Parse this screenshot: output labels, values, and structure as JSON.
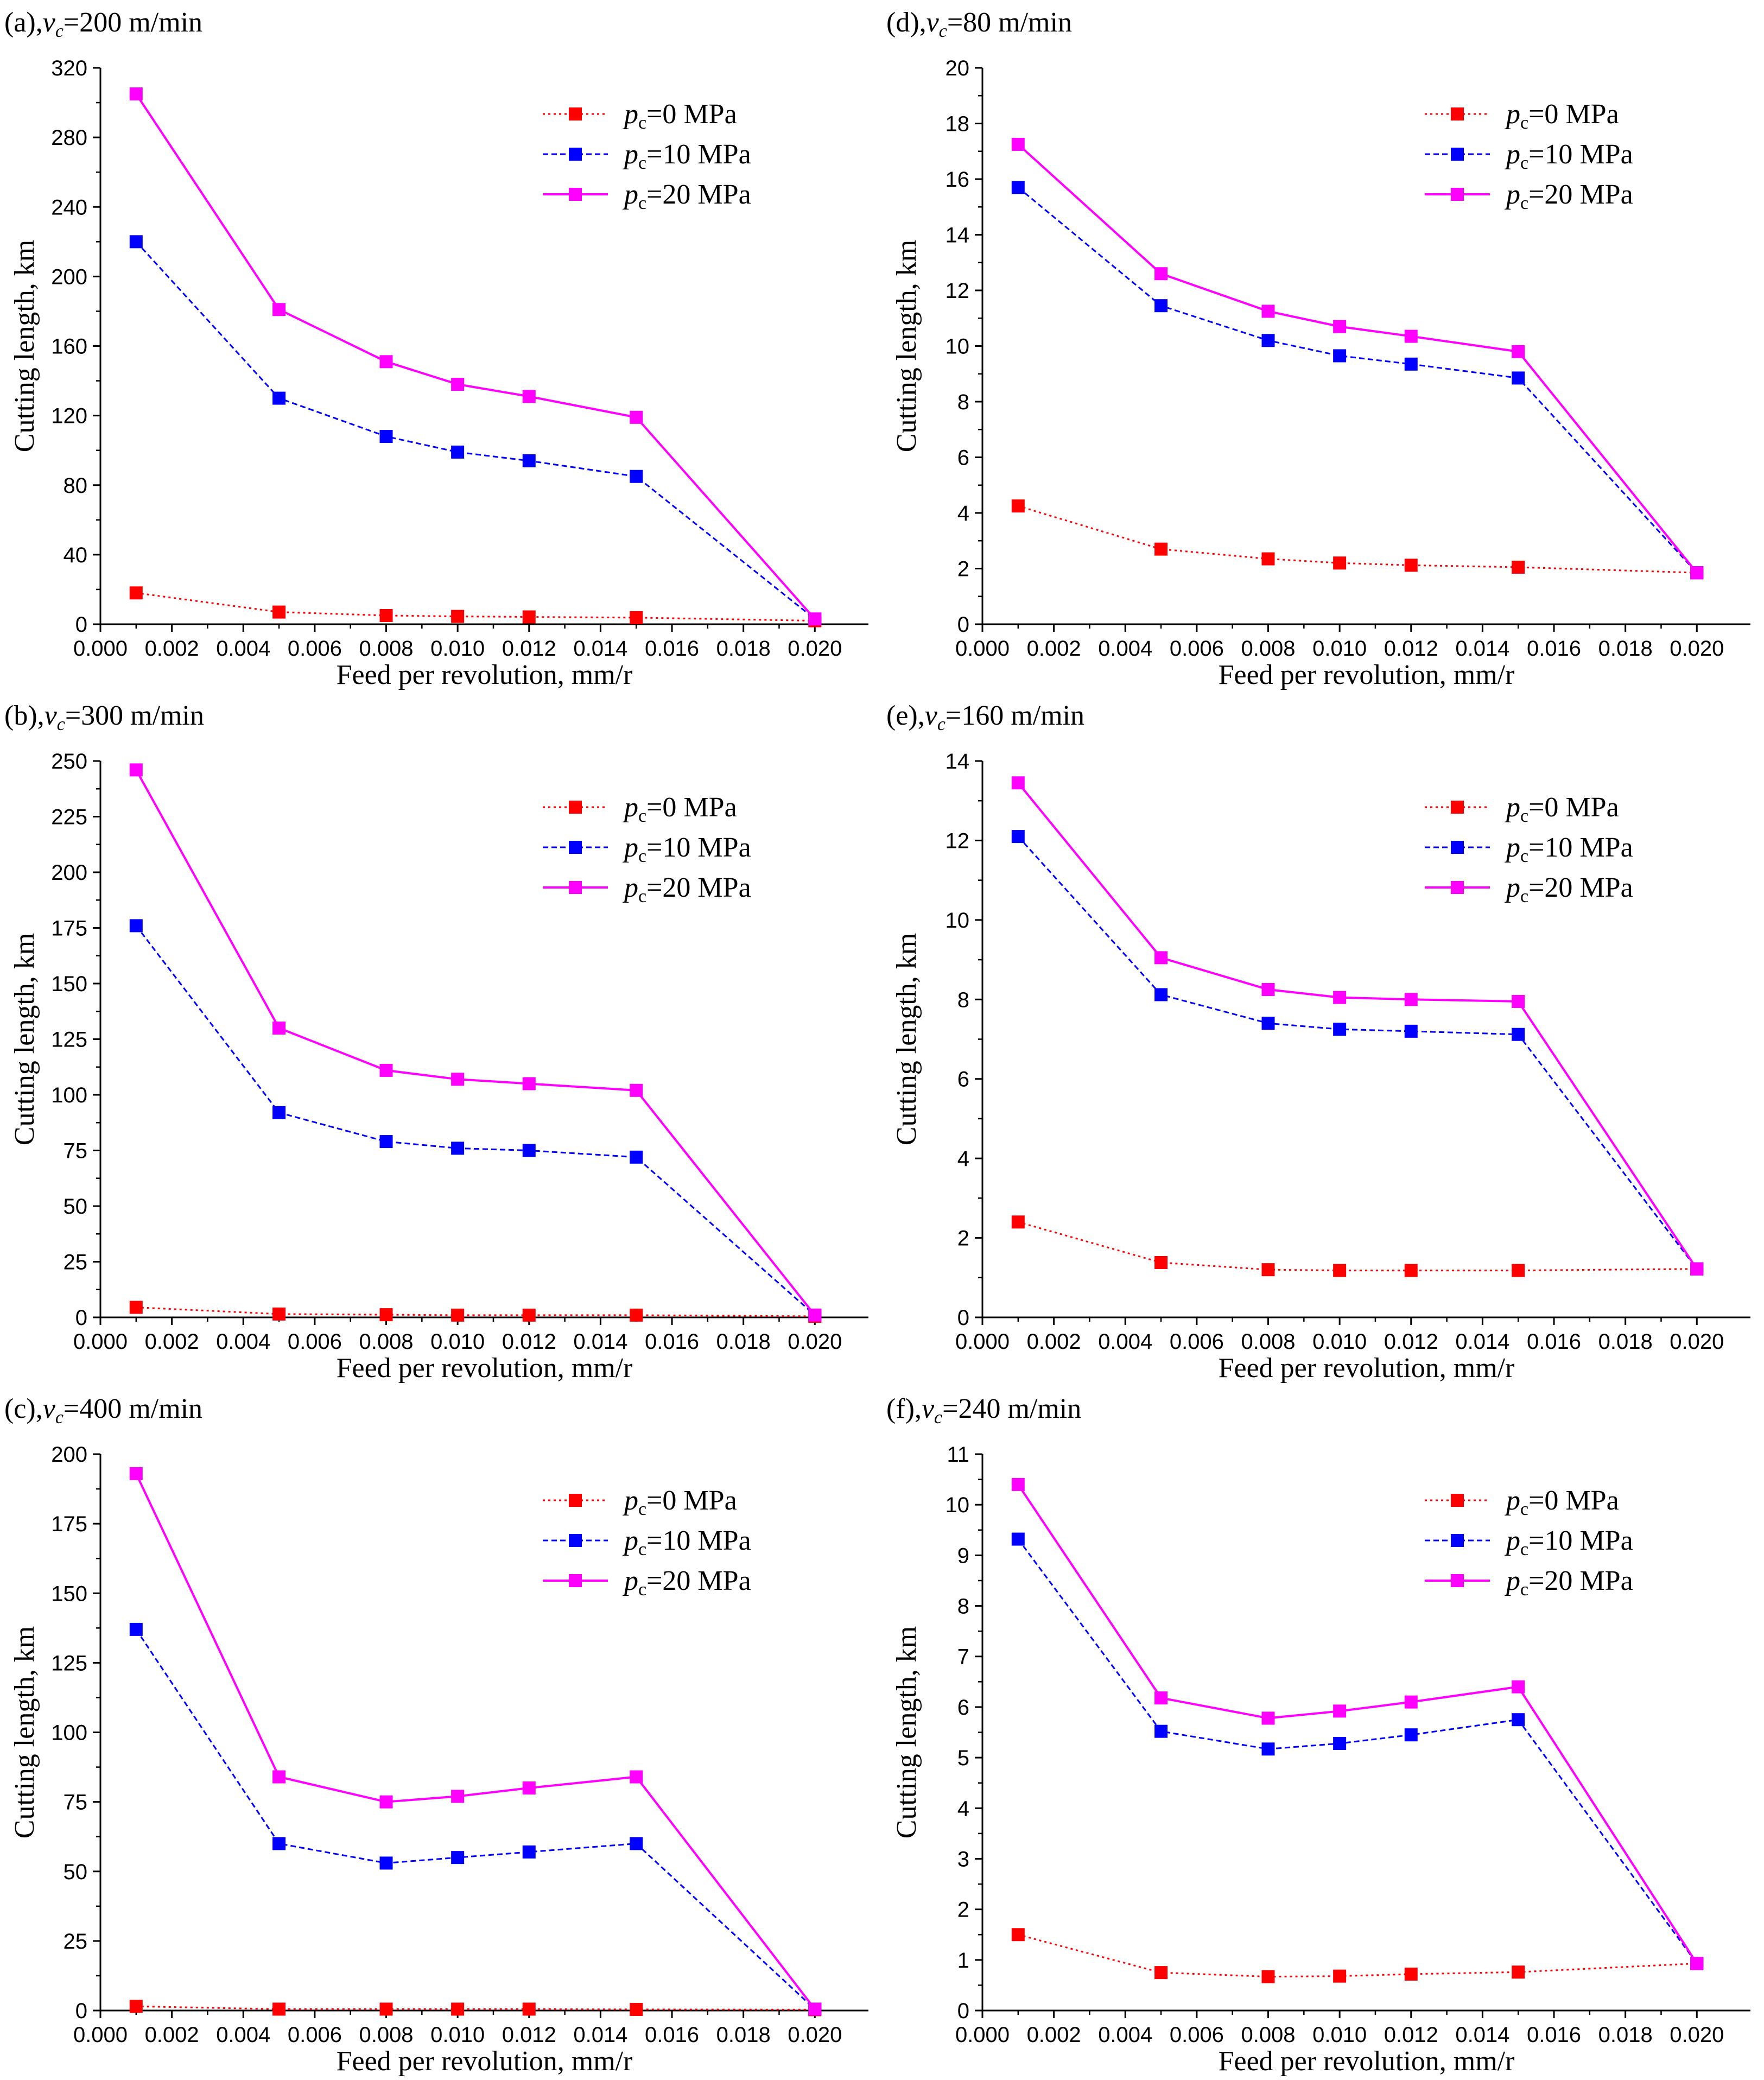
{
  "figure": {
    "legend_labels": [
      "pс=0 MPa",
      "pс=10 MPa",
      "pс=20 MPa"
    ],
    "series_colors": [
      "#ff0000",
      "#0000ff",
      "#ff00ff"
    ]
  },
  "chart_data": [
    {
      "id": "a",
      "type": "line",
      "title": "(a),vc=200 m/min",
      "title_prefix": "(a),",
      "title_var": "v",
      "title_sub": "c",
      "title_suffix": "=200 m/min",
      "xlabel": "Feed per revolution, mm/r",
      "ylabel": "Cutting length, km",
      "xlim": [
        0.0,
        0.0215
      ],
      "ylim": [
        0,
        320
      ],
      "xticks": [
        "0.000",
        "0.002",
        "0.004",
        "0.006",
        "0.008",
        "0.010",
        "0.012",
        "0.014",
        "0.016",
        "0.018",
        "0.020"
      ],
      "yticks": [
        "0",
        "40",
        "80",
        "120",
        "160",
        "200",
        "240",
        "280",
        "320"
      ],
      "x": [
        0.001,
        0.005,
        0.008,
        0.01,
        0.012,
        0.015,
        0.02
      ],
      "series": [
        {
          "name": "pc=0 MPa",
          "values": [
            18,
            7,
            5,
            4.5,
            4.2,
            3.8,
            2
          ]
        },
        {
          "name": "pc=10 MPa",
          "values": [
            220,
            130,
            108,
            99,
            94,
            85,
            3
          ]
        },
        {
          "name": "pc=20 MPa",
          "values": [
            305,
            181,
            151,
            138,
            131,
            119,
            3
          ]
        }
      ]
    },
    {
      "id": "b",
      "type": "line",
      "title": "(b),vc=300 m/min",
      "title_prefix": "(b),",
      "title_var": "v",
      "title_sub": "c",
      "title_suffix": "=300 m/min",
      "xlabel": "Feed per revolution, mm/r",
      "ylabel": "Cutting length, km",
      "xlim": [
        0.0,
        0.0215
      ],
      "ylim": [
        0,
        250
      ],
      "xticks": [
        "0.000",
        "0.002",
        "0.004",
        "0.006",
        "0.008",
        "0.010",
        "0.012",
        "0.014",
        "0.016",
        "0.018",
        "0.020"
      ],
      "yticks": [
        "0",
        "25",
        "50",
        "75",
        "100",
        "125",
        "150",
        "175",
        "200",
        "225",
        "250"
      ],
      "x": [
        0.001,
        0.005,
        0.008,
        0.01,
        0.012,
        0.015,
        0.02
      ],
      "series": [
        {
          "name": "pc=0 MPa",
          "values": [
            4.5,
            1.5,
            1.2,
            1,
            1,
            1,
            0.5
          ]
        },
        {
          "name": "pc=10 MPa",
          "values": [
            176,
            92,
            79,
            76,
            75,
            72,
            1
          ]
        },
        {
          "name": "pc=20 MPa",
          "values": [
            246,
            130,
            111,
            107,
            105,
            102,
            1
          ]
        }
      ]
    },
    {
      "id": "c",
      "type": "line",
      "title": "(c),vc=400 m/min",
      "title_prefix": "(c),",
      "title_var": "v",
      "title_sub": "c",
      "title_suffix": "=400 m/min",
      "xlabel": "Feed per revolution, mm/r",
      "ylabel": "Cutting length, km",
      "xlim": [
        0.0,
        0.0215
      ],
      "ylim": [
        0,
        200
      ],
      "xticks": [
        "0.000",
        "0.002",
        "0.004",
        "0.006",
        "0.008",
        "0.010",
        "0.012",
        "0.014",
        "0.016",
        "0.018",
        "0.020"
      ],
      "yticks": [
        "0",
        "25",
        "50",
        "75",
        "100",
        "125",
        "150",
        "175",
        "200"
      ],
      "x": [
        0.001,
        0.005,
        0.008,
        0.01,
        0.012,
        0.015,
        0.02
      ],
      "series": [
        {
          "name": "pc=0 MPa",
          "values": [
            1.5,
            0.5,
            0.5,
            0.5,
            0.5,
            0.4,
            0.3
          ]
        },
        {
          "name": "pc=10 MPa",
          "values": [
            137,
            60,
            53,
            55,
            57,
            60,
            0.5
          ]
        },
        {
          "name": "pc=20 MPa",
          "values": [
            193,
            84,
            75,
            77,
            80,
            84,
            0.5
          ]
        }
      ]
    },
    {
      "id": "d",
      "type": "line",
      "title": "(d),vc=80 m/min",
      "title_prefix": "(d),",
      "title_var": "v",
      "title_sub": "c",
      "title_suffix": "=80 m/min",
      "xlabel": "Feed per revolution, mm/r",
      "ylabel": "Cutting length, km",
      "xlim": [
        0.0,
        0.0215
      ],
      "ylim": [
        0,
        20
      ],
      "xticks": [
        "0.000",
        "0.002",
        "0.004",
        "0.006",
        "0.008",
        "0.010",
        "0.012",
        "0.014",
        "0.016",
        "0.018",
        "0.020"
      ],
      "yticks": [
        "0",
        "2",
        "4",
        "6",
        "8",
        "10",
        "12",
        "14",
        "16",
        "18",
        "20"
      ],
      "x": [
        0.001,
        0.005,
        0.008,
        0.01,
        0.012,
        0.015,
        0.02
      ],
      "series": [
        {
          "name": "pc=0 MPa",
          "values": [
            4.25,
            2.7,
            2.35,
            2.2,
            2.12,
            2.05,
            1.85
          ]
        },
        {
          "name": "pc=10 MPa",
          "values": [
            15.7,
            11.45,
            10.2,
            9.65,
            9.35,
            8.85,
            1.85
          ]
        },
        {
          "name": "pc=20 MPa",
          "values": [
            17.25,
            12.6,
            11.25,
            10.7,
            10.35,
            9.8,
            1.85
          ]
        }
      ]
    },
    {
      "id": "e",
      "type": "line",
      "title": "(e),vc=160 m/min",
      "title_prefix": "(e),",
      "title_var": "v",
      "title_sub": "c",
      "title_suffix": "=160 m/min",
      "xlabel": "Feed per revolution, mm/r",
      "ylabel": "Cutting length, km",
      "xlim": [
        0.0,
        0.0215
      ],
      "ylim": [
        0,
        14
      ],
      "xticks": [
        "0.000",
        "0.002",
        "0.004",
        "0.006",
        "0.008",
        "0.010",
        "0.012",
        "0.014",
        "0.016",
        "0.018",
        "0.020"
      ],
      "yticks": [
        "0",
        "2",
        "4",
        "6",
        "8",
        "10",
        "12",
        "14"
      ],
      "x": [
        0.001,
        0.005,
        0.008,
        0.01,
        0.012,
        0.015,
        0.02
      ],
      "series": [
        {
          "name": "pc=0 MPa",
          "values": [
            2.4,
            1.38,
            1.2,
            1.18,
            1.18,
            1.18,
            1.22
          ]
        },
        {
          "name": "pc=10 MPa",
          "values": [
            12.1,
            8.12,
            7.4,
            7.25,
            7.2,
            7.12,
            1.22
          ]
        },
        {
          "name": "pc=20 MPa",
          "values": [
            13.45,
            9.05,
            8.25,
            8.05,
            8.0,
            7.95,
            1.22
          ]
        }
      ]
    },
    {
      "id": "f",
      "type": "line",
      "title": "(f),vc=240 m/min",
      "title_prefix": "(f),",
      "title_var": "v",
      "title_sub": "c",
      "title_suffix": "=240 m/min",
      "xlabel": "Feed per revolution, mm/r",
      "ylabel": "Cutting length, km",
      "xlim": [
        0.0,
        0.0215
      ],
      "ylim": [
        0,
        11
      ],
      "xticks": [
        "0.000",
        "0.002",
        "0.004",
        "0.006",
        "0.008",
        "0.010",
        "0.012",
        "0.014",
        "0.016",
        "0.018",
        "0.020"
      ],
      "yticks": [
        "0",
        "1",
        "2",
        "3",
        "4",
        "5",
        "6",
        "7",
        "8",
        "9",
        "10",
        "11"
      ],
      "x": [
        0.001,
        0.005,
        0.008,
        0.01,
        0.012,
        0.015,
        0.02
      ],
      "series": [
        {
          "name": "pc=0 MPa",
          "values": [
            1.5,
            0.75,
            0.67,
            0.68,
            0.72,
            0.76,
            0.93
          ]
        },
        {
          "name": "pc=10 MPa",
          "values": [
            9.32,
            5.52,
            5.17,
            5.28,
            5.45,
            5.75,
            0.93
          ]
        },
        {
          "name": "pc=20 MPa",
          "values": [
            10.4,
            6.18,
            5.78,
            5.92,
            6.1,
            6.4,
            0.93
          ]
        }
      ]
    }
  ]
}
